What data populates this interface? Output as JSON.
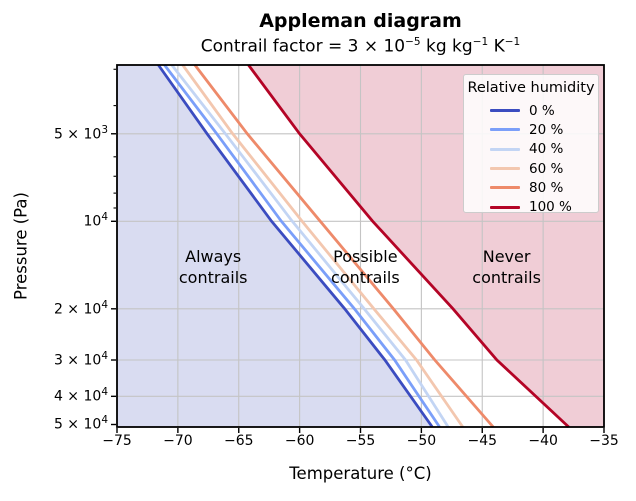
{
  "title": "Appleman diagram",
  "subtitle": "Contrail factor = 3 × 10^-5 kg kg^-1 K^-1",
  "chart_data": {
    "type": "line",
    "xlabel": "Temperature (°C)",
    "ylabel": "Pressure (Pa)",
    "xlim": [
      -75,
      -35
    ],
    "ylim": [
      2900,
      51000
    ],
    "y_scale": "log-inverted",
    "grid": true,
    "x_ticks": [
      {
        "value": -75,
        "label": "−75"
      },
      {
        "value": -70,
        "label": "−70"
      },
      {
        "value": -65,
        "label": "−65"
      },
      {
        "value": -60,
        "label": "−60"
      },
      {
        "value": -55,
        "label": "−55"
      },
      {
        "value": -50,
        "label": "−50"
      },
      {
        "value": -45,
        "label": "−45"
      },
      {
        "value": -40,
        "label": "−40"
      },
      {
        "value": -35,
        "label": "−35"
      }
    ],
    "y_ticks": [
      {
        "value": 5000,
        "label": "5 × 10^3"
      },
      {
        "value": 10000,
        "label": "10^4"
      },
      {
        "value": 20000,
        "label": "2 × 10^4"
      },
      {
        "value": 30000,
        "label": "3 × 10^4"
      },
      {
        "value": 40000,
        "label": "4 × 10^4"
      },
      {
        "value": 50000,
        "label": "5 × 10^4"
      }
    ],
    "y_minor_ticks": [
      3000,
      4000,
      6000,
      7000,
      8000,
      9000
    ],
    "pressures_pa": [
      2900,
      5000,
      10000,
      20000,
      30000,
      51000
    ],
    "series": [
      {
        "label": "0 %",
        "color": "#3b4cc0",
        "temps_c": [
          -71.6,
          -67.6,
          -62.3,
          -56.3,
          -53.0,
          -49.1
        ]
      },
      {
        "label": "20 %",
        "color": "#7b9ff9",
        "temps_c": [
          -71.1,
          -66.8,
          -61.5,
          -55.5,
          -52.2,
          -48.5
        ]
      },
      {
        "label": "40 %",
        "color": "#c3d5f4",
        "temps_c": [
          -70.5,
          -66.1,
          -60.6,
          -54.7,
          -51.3,
          -47.8
        ]
      },
      {
        "label": "60 %",
        "color": "#f3c7af",
        "temps_c": [
          -69.6,
          -65.5,
          -59.8,
          -53.9,
          -50.4,
          -46.6
        ]
      },
      {
        "label": "80 %",
        "color": "#ee8a6a",
        "temps_c": [
          -68.6,
          -64.3,
          -58.3,
          -52.3,
          -48.9,
          -44.1
        ]
      },
      {
        "label": "100 %",
        "color": "#b40426",
        "temps_c": [
          -64.2,
          -60.0,
          -54.0,
          -47.4,
          -43.8,
          -37.9
        ]
      }
    ],
    "legend": {
      "title": "Relative humidity",
      "position": "upper right"
    },
    "regions": [
      {
        "text": "Always\ncontrails",
        "fill": "#d9dcf1",
        "label_t_c": -67.1,
        "label_p_pa": 14400
      },
      {
        "text": "Possible\ncontrails",
        "fill": "#ffffff",
        "label_t_c": -54.6,
        "label_p_pa": 14400
      },
      {
        "text": "Never\ncontrails",
        "fill": "#f0cdd6",
        "label_t_c": -43.0,
        "label_p_pa": 14400
      }
    ]
  }
}
